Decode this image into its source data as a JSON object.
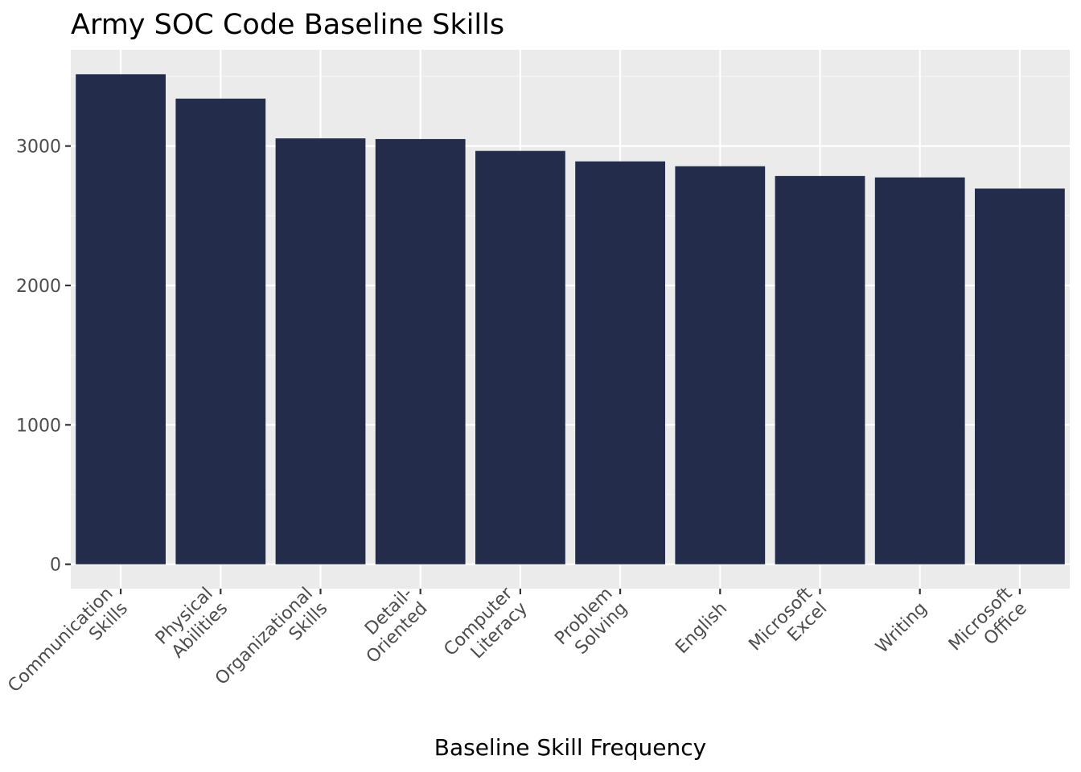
{
  "chart_data": {
    "type": "bar",
    "title": "Army SOC Code Baseline Skills",
    "xlabel": "Baseline Skill Frequency",
    "ylabel": "",
    "categories": [
      "Communication Skills",
      "Physical Abilities",
      "Organizational Skills",
      "Detail-Oriented",
      "Computer Literacy",
      "Problem Solving",
      "English",
      "Microsoft Excel",
      "Writing",
      "Microsoft Office"
    ],
    "category_label_lines": [
      [
        "Communication",
        "Skills"
      ],
      [
        "Physical",
        "Abilities"
      ],
      [
        "Organizational",
        "Skills"
      ],
      [
        "Detail-",
        "Oriented"
      ],
      [
        "Computer",
        "Literacy"
      ],
      [
        "Problem",
        "Solving"
      ],
      [
        "English"
      ],
      [
        "Microsoft",
        "Excel"
      ],
      [
        "Writing"
      ],
      [
        "Microsoft",
        "Office"
      ]
    ],
    "values": [
      3515,
      3340,
      3055,
      3050,
      2965,
      2890,
      2855,
      2785,
      2775,
      2695
    ],
    "ylim": [
      -175,
      3690
    ],
    "yticks": [
      0,
      1000,
      2000,
      3000
    ],
    "ytick_labels": [
      "0",
      "1000",
      "2000",
      "3000"
    ],
    "grid": true,
    "legend": "none",
    "colors": {
      "bar": "#232c4b",
      "panel_background": "#ebebeb",
      "grid_major": "#ffffff",
      "grid_minor": "#f5f5f5",
      "tick_text": "#4d4d4d",
      "tick_mark": "#333333"
    }
  }
}
